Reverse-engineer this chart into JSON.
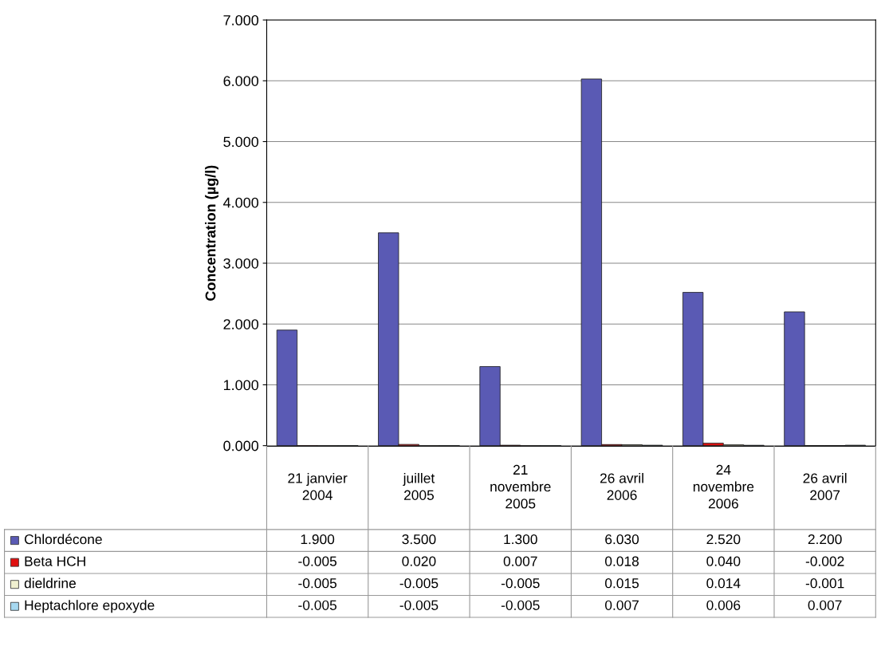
{
  "chart_data": {
    "type": "bar",
    "ylabel": "Concentration (µg/l)",
    "categories": [
      "21 janvier\n2004",
      "juillet\n2005",
      "21\nnovembre\n2005",
      "26 avril\n2006",
      "24\nnovembre\n2006",
      "26 avril\n2007"
    ],
    "series": [
      {
        "name": "Chlordécone",
        "color": "#5a5ab4",
        "values": [
          1.9,
          3.5,
          1.3,
          6.03,
          2.52,
          2.2
        ],
        "value_labels": [
          "1.900",
          "3.500",
          "1.300",
          "6.030",
          "2.520",
          "2.200"
        ]
      },
      {
        "name": "Beta HCH",
        "color": "#e01010",
        "values": [
          -0.005,
          0.02,
          0.007,
          0.018,
          0.04,
          -0.002
        ],
        "value_labels": [
          "-0.005",
          "0.020",
          "0.007",
          "0.018",
          "0.040",
          "-0.002"
        ]
      },
      {
        "name": "dieldrine",
        "color": "#f0f0d0",
        "values": [
          -0.005,
          -0.005,
          -0.005,
          0.015,
          0.014,
          -0.001
        ],
        "value_labels": [
          "-0.005",
          "-0.005",
          "-0.005",
          "0.015",
          "0.014",
          "-0.001"
        ]
      },
      {
        "name": "Heptachlore epoxyde",
        "color": "#a6d8f0",
        "values": [
          -0.005,
          -0.005,
          -0.005,
          0.007,
          0.006,
          0.007
        ],
        "value_labels": [
          "-0.005",
          "-0.005",
          "-0.005",
          "0.007",
          "0.006",
          "0.007"
        ]
      }
    ],
    "ylim": [
      -0.01,
      7
    ],
    "yticks": [
      {
        "value": 0,
        "label": "0.000"
      },
      {
        "value": 1,
        "label": "1.000"
      },
      {
        "value": 2,
        "label": "2.000"
      },
      {
        "value": 3,
        "label": "3.000"
      },
      {
        "value": 4,
        "label": "4.000"
      },
      {
        "value": 5,
        "label": "5.000"
      },
      {
        "value": 6,
        "label": "6.000"
      },
      {
        "value": 7,
        "label": "7.000"
      }
    ],
    "grid": "y",
    "legend": "bottom"
  }
}
